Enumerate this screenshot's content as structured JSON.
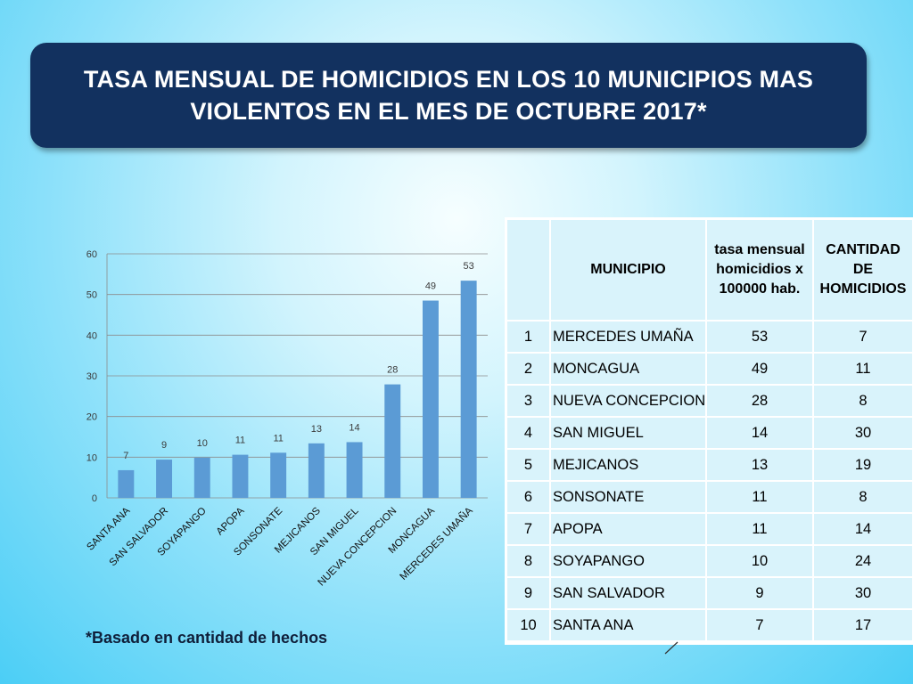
{
  "title": {
    "line1": "TASA MENSUAL DE HOMICIDIOS EN LOS 10 MUNICIPIOS MAS",
    "line2": "VIOLENTOS EN EL MES  DE OCTUBRE 2017*"
  },
  "colors": {
    "title_bg": "#12315f",
    "bar": "#5b9bd5",
    "table_cell": "#d9f3fb"
  },
  "chart_data": {
    "type": "bar",
    "categories": [
      "SANTA ANA",
      "SAN SALVADOR",
      "SOYAPANGO",
      "APOPA",
      "SONSONATE",
      "MEJICANOS",
      "SAN MIGUEL",
      "NUEVA CONCEPCION",
      "MONCAGUA",
      "MERCEDES UMAÑA"
    ],
    "values": [
      7,
      9,
      10,
      11,
      11,
      13,
      14,
      28,
      49,
      53
    ],
    "bar_values": [
      6.8,
      9.4,
      9.9,
      10.6,
      11.1,
      13.4,
      13.7,
      27.9,
      48.5,
      53.4
    ],
    "yticks": [
      0,
      10,
      20,
      30,
      40,
      50,
      60
    ],
    "ylim": [
      0,
      60
    ],
    "grid": true,
    "legend": "none",
    "title": "",
    "xlabel": "",
    "ylabel": ""
  },
  "footnote": "*Basado en cantidad de hechos",
  "table": {
    "headers": [
      "",
      "MUNICIPIO",
      "tasa mensual homicidios x 100000 hab.",
      "CANTIDAD DE HOMICIDIOS"
    ],
    "rows": [
      [
        "1",
        "MERCEDES UMAÑA",
        "53",
        "7"
      ],
      [
        "2",
        "MONCAGUA",
        "49",
        "11"
      ],
      [
        "3",
        "NUEVA CONCEPCION",
        "28",
        "8"
      ],
      [
        "4",
        "SAN MIGUEL",
        "14",
        "30"
      ],
      [
        "5",
        "MEJICANOS",
        "13",
        "19"
      ],
      [
        "6",
        "SONSONATE",
        "11",
        "8"
      ],
      [
        "7",
        "APOPA",
        "11",
        "14"
      ],
      [
        "8",
        "SOYAPANGO",
        "10",
        "24"
      ],
      [
        "9",
        "SAN SALVADOR",
        "9",
        "30"
      ],
      [
        "10",
        "SANTA ANA",
        "7",
        "17"
      ]
    ]
  }
}
